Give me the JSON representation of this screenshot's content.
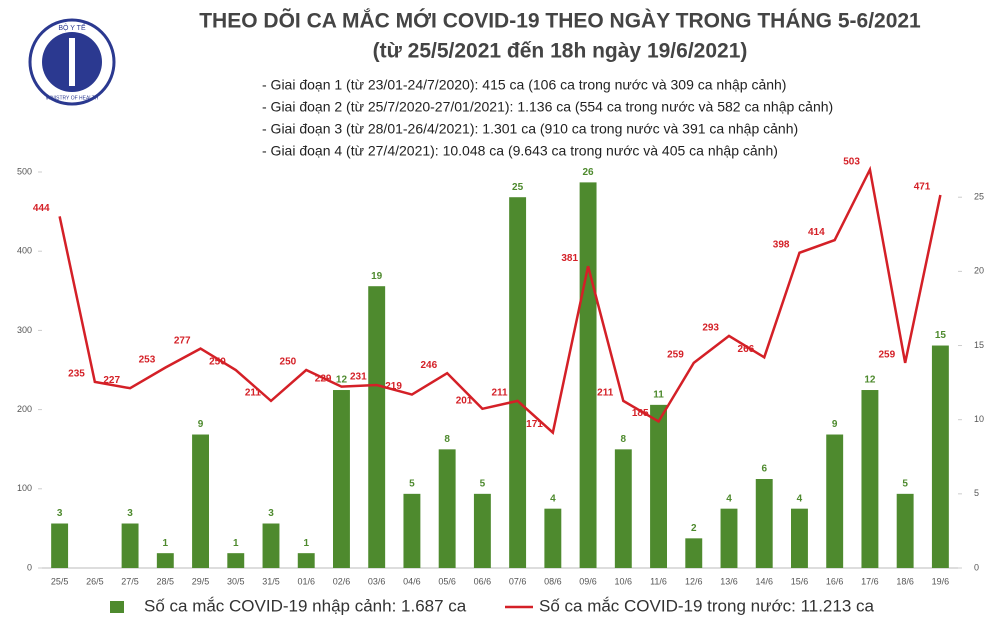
{
  "logo": {
    "top": "BỘ Y TẾ",
    "bottom": "MINISTRY OF HEALTH"
  },
  "chart_data": {
    "type": "bar",
    "title": "THEO DÕI CA MẮC MỚI COVID-19 THEO NGÀY TRONG THÁNG 5-6/2021",
    "subtitle": "(từ 25/5/2021 đến 18h ngày 19/6/2021)",
    "annotations": [
      "- Giai đoạn 1 (từ 23/01-24/7/2020): 415 ca (106 ca trong nước và 309 ca nhập cảnh)",
      "- Giai đoạn 2 (từ 25/7/2020-27/01/2021): 1.136 ca (554 ca trong nước và 582 ca nhập cảnh)",
      "- Giai đoạn 3 (từ 28/01-26/4/2021): 1.301 ca (910 ca trong nước và 391 ca nhập cảnh)",
      "- Giai đoạn 4 (từ 27/4/2021): 10.048 ca (9.643 ca trong nước và 405 ca nhập cảnh)"
    ],
    "categories": [
      "25/5",
      "26/5",
      "27/5",
      "28/5",
      "29/5",
      "30/5",
      "31/5",
      "01/6",
      "02/6",
      "03/6",
      "04/6",
      "05/6",
      "06/6",
      "07/6",
      "08/6",
      "09/6",
      "10/6",
      "11/6",
      "12/6",
      "13/6",
      "14/6",
      "15/6",
      "16/6",
      "17/6",
      "18/6",
      "19/6"
    ],
    "series": [
      {
        "name": "Số ca mắc COVID-19 nhập cảnh: 1.687 ca",
        "type": "bar",
        "axis": "y2",
        "color": "#4e8a2e",
        "values": [
          3,
          null,
          3,
          1,
          9,
          1,
          3,
          1,
          12,
          19,
          5,
          8,
          5,
          25,
          4,
          26,
          8,
          11,
          2,
          4,
          6,
          4,
          9,
          12,
          5,
          15
        ]
      },
      {
        "name": "Số ca mắc COVID-19 trong nước: 11.213 ca",
        "type": "line",
        "color": "#d42027",
        "values": [
          444,
          235,
          227,
          253,
          277,
          250,
          211,
          250,
          229,
          231,
          219,
          246,
          201,
          211,
          171,
          381,
          211,
          185,
          259,
          293,
          266,
          398,
          414,
          503,
          259,
          471
        ]
      }
    ],
    "ylim": [
      0,
      500
    ],
    "yticks": [
      0,
      100,
      200,
      300,
      400,
      500
    ],
    "y2lim": [
      0,
      26.7
    ],
    "y2ticks": [
      0,
      5,
      10,
      15,
      20,
      25
    ]
  }
}
